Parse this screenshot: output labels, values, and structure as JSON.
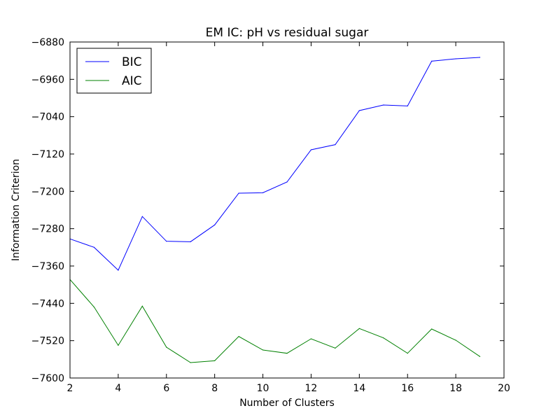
{
  "chart_data": {
    "type": "line",
    "title": "EM IC: pH vs residual sugar",
    "xlabel": "Number of Clusters",
    "ylabel": "Information Criterion",
    "xlim": [
      2,
      20
    ],
    "ylim": [
      -7600,
      -6880
    ],
    "xticks": [
      2,
      4,
      6,
      8,
      10,
      12,
      14,
      16,
      18,
      20
    ],
    "yticks": [
      -6880,
      -6960,
      -7040,
      -7120,
      -7200,
      -7280,
      -7360,
      -7440,
      -7520,
      -7600
    ],
    "grid": false,
    "legend": "top-left",
    "x": [
      2,
      3,
      4,
      5,
      6,
      7,
      8,
      9,
      10,
      11,
      12,
      13,
      14,
      15,
      16,
      17,
      18,
      19
    ],
    "series": [
      {
        "name": "BIC",
        "color": "#0000ff",
        "values": [
          -7302,
          -7320,
          -7369,
          -7254,
          -7307,
          -7308,
          -7272,
          -7204,
          -7203,
          -7180,
          -7111,
          -7100,
          -7027,
          -7015,
          -7017,
          -6921,
          -6916,
          -6913
        ]
      },
      {
        "name": "AIC",
        "color": "#008000",
        "values": [
          -7389,
          -7448,
          -7530,
          -7446,
          -7534,
          -7567,
          -7563,
          -7511,
          -7540,
          -7547,
          -7516,
          -7536,
          -7494,
          -7514,
          -7547,
          -7495,
          -7519,
          -7554
        ]
      }
    ]
  }
}
